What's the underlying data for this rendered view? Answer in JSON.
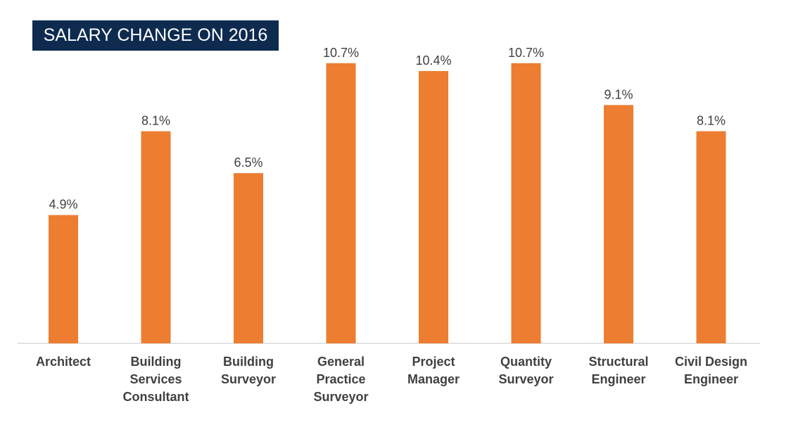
{
  "header": {
    "title": "SALARY CHANGE ON 2016"
  },
  "colors": {
    "bar": "#ed7d31",
    "title_bg": "#0e2b4f",
    "axis": "#d9d9d9",
    "text": "#404040"
  },
  "chart_data": {
    "type": "bar",
    "title": "SALARY CHANGE ON 2016",
    "categories": [
      [
        "Architect"
      ],
      [
        "Building",
        "Services",
        "Consultant"
      ],
      [
        "Building",
        "Surveyor"
      ],
      [
        "General",
        "Practice",
        "Surveyor"
      ],
      [
        "Project",
        "Manager"
      ],
      [
        "Quantity",
        "Surveyor"
      ],
      [
        "Structural",
        "Engineer"
      ],
      [
        "Civil Design",
        "Engineer"
      ]
    ],
    "values": [
      4.9,
      8.1,
      6.5,
      10.7,
      10.4,
      10.7,
      9.1,
      8.1
    ],
    "data_labels": [
      "4.9%",
      "8.1%",
      "6.5%",
      "10.7%",
      "10.4%",
      "10.7%",
      "9.1%",
      "8.1%"
    ],
    "xlabel": "",
    "ylabel": "",
    "ylim": [
      0,
      11.5
    ],
    "grid": false,
    "legend": "none"
  }
}
